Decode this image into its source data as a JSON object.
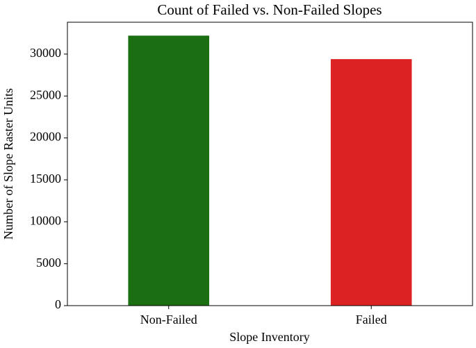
{
  "chart_data": {
    "type": "bar",
    "title": "Count of Failed vs. Non-Failed Slopes",
    "x_label": "Slope Inventory",
    "y_label": "Number of Slope Raster Units",
    "categories": [
      "Non-Failed",
      "Failed"
    ],
    "values": [
      32200,
      29400
    ],
    "colors": [
      "#1b6f12",
      "#dc2222"
    ],
    "ylim": [
      0,
      33800
    ],
    "yticks": [
      0,
      5000,
      10000,
      15000,
      20000,
      25000,
      30000
    ],
    "grid": false
  }
}
